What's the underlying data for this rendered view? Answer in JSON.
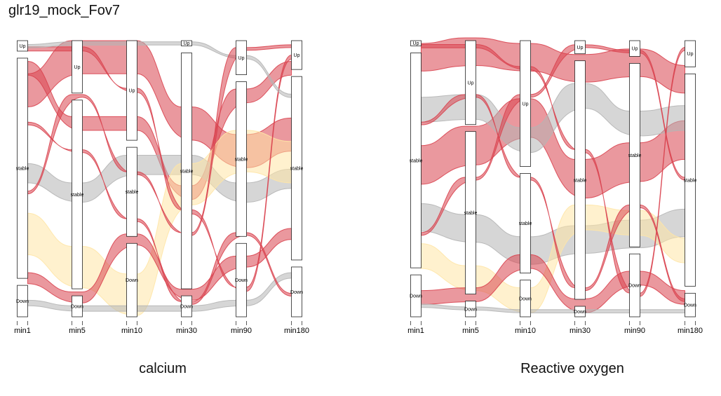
{
  "figure": {
    "title": "glr19_mock_Fov7"
  },
  "colors": {
    "up_flow": "#d9434f",
    "stable_flow": "#b5b5b5",
    "down_flow": "#ffe6a6",
    "stratum_fill": "#ffffff",
    "stratum_stroke": "#222222"
  },
  "chart_data": [
    {
      "type": "alluvial",
      "caption": "calcium",
      "axes": [
        "min1",
        "min5",
        "min10",
        "min30",
        "min90",
        "min180"
      ],
      "strata": [
        {
          "axis": "min1",
          "levels": [
            {
              "label": "Up",
              "share": 0.04
            },
            {
              "label": "stable",
              "share": 0.84
            },
            {
              "label": "Down",
              "share": 0.12
            }
          ]
        },
        {
          "axis": "min5",
          "levels": [
            {
              "label": "Up",
              "share": 0.2
            },
            {
              "label": "stable",
              "share": 0.72
            },
            {
              "label": "Down",
              "share": 0.08
            }
          ]
        },
        {
          "axis": "min10",
          "levels": [
            {
              "label": "Up",
              "share": 0.38
            },
            {
              "label": "stable",
              "share": 0.34
            },
            {
              "label": "Down",
              "share": 0.28
            }
          ]
        },
        {
          "axis": "min30",
          "levels": [
            {
              "label": "Up",
              "share": 0.02
            },
            {
              "label": "stable",
              "share": 0.9
            },
            {
              "label": "Down",
              "share": 0.08
            }
          ]
        },
        {
          "axis": "min90",
          "levels": [
            {
              "label": "Up",
              "share": 0.13
            },
            {
              "label": "stable",
              "share": 0.59
            },
            {
              "label": "Down",
              "share": 0.28
            }
          ]
        },
        {
          "axis": "min180",
          "levels": [
            {
              "label": "Up",
              "share": 0.11
            },
            {
              "label": "stable",
              "share": 0.7
            },
            {
              "label": "Down",
              "share": 0.19
            }
          ]
        }
      ],
      "flow_groups": [
        {
          "color": "up_flow",
          "path": [
            0.18,
            0.06,
            0.06,
            0.3,
            0.4,
            0.34
          ],
          "width": 0.12
        },
        {
          "color": "up_flow",
          "path": [
            0.1,
            0.3,
            0.3,
            0.55,
            0.2,
            0.1
          ],
          "width": 0.05
        },
        {
          "color": "stable_flow",
          "path": [
            0.48,
            0.55,
            0.45,
            0.45,
            0.55,
            0.5
          ],
          "width": 0.07
        },
        {
          "color": "down_flow",
          "path": [
            0.7,
            0.82,
            0.92,
            0.52,
            0.4,
            0.44
          ],
          "width": 0.15
        },
        {
          "color": "up_flow",
          "path": [
            0.86,
            0.93,
            0.72,
            0.92,
            0.8,
            0.7
          ],
          "width": 0.04
        },
        {
          "color": "stable_flow",
          "path": [
            0.95,
            0.97,
            0.97,
            0.97,
            0.95,
            0.85
          ],
          "width": 0.02
        },
        {
          "color": "up_flow",
          "path": [
            0.03,
            0.03,
            0.18,
            0.62,
            0.9,
            0.06
          ],
          "width": 0.015
        },
        {
          "color": "stable_flow",
          "path": [
            0.02,
            0.01,
            0.01,
            0.01,
            0.06,
            0.2
          ],
          "width": 0.012
        },
        {
          "color": "up_flow",
          "path": [
            0.3,
            0.4,
            0.65,
            0.95,
            0.7,
            0.92
          ],
          "width": 0.01
        },
        {
          "color": "up_flow",
          "path": [
            0.55,
            0.2,
            0.48,
            0.7,
            0.03,
            0.02
          ],
          "width": 0.01
        }
      ]
    },
    {
      "type": "alluvial",
      "caption": "Reactive oxygen",
      "axes": [
        "min1",
        "min5",
        "min10",
        "min30",
        "min90",
        "min180"
      ],
      "strata": [
        {
          "axis": "min1",
          "levels": [
            {
              "label": "Up",
              "share": 0.02
            },
            {
              "label": "stable",
              "share": 0.82
            },
            {
              "label": "Down",
              "share": 0.16
            }
          ]
        },
        {
          "axis": "min5",
          "levels": [
            {
              "label": "Up",
              "share": 0.32
            },
            {
              "label": "stable",
              "share": 0.62
            },
            {
              "label": "Down",
              "share": 0.06
            }
          ]
        },
        {
          "axis": "min10",
          "levels": [
            {
              "label": "Up",
              "share": 0.48
            },
            {
              "label": "stable",
              "share": 0.38
            },
            {
              "label": "Down",
              "share": 0.14
            }
          ]
        },
        {
          "axis": "min30",
          "levels": [
            {
              "label": "Up",
              "share": 0.05
            },
            {
              "label": "stable",
              "share": 0.91
            },
            {
              "label": "Down",
              "share": 0.04
            }
          ]
        },
        {
          "axis": "min90",
          "levels": [
            {
              "label": "Up",
              "share": 0.06
            },
            {
              "label": "stable",
              "share": 0.7
            },
            {
              "label": "Down",
              "share": 0.24
            }
          ]
        },
        {
          "axis": "min180",
          "levels": [
            {
              "label": "Up",
              "share": 0.1
            },
            {
              "label": "stable",
              "share": 0.81
            },
            {
              "label": "Down",
              "share": 0.09
            }
          ]
        }
      ],
      "flow_groups": [
        {
          "color": "up_flow",
          "path": [
            0.06,
            0.04,
            0.06,
            0.1,
            0.08,
            0.14
          ],
          "width": 0.1
        },
        {
          "color": "up_flow",
          "path": [
            0.45,
            0.38,
            0.28,
            0.5,
            0.44,
            0.36
          ],
          "width": 0.14
        },
        {
          "color": "stable_flow",
          "path": [
            0.25,
            0.24,
            0.36,
            0.2,
            0.3,
            0.28
          ],
          "width": 0.09
        },
        {
          "color": "stable_flow",
          "path": [
            0.64,
            0.68,
            0.76,
            0.72,
            0.7,
            0.66
          ],
          "width": 0.1
        },
        {
          "color": "down_flow",
          "path": [
            0.78,
            0.86,
            0.94,
            0.64,
            0.66,
            0.76
          ],
          "width": 0.09
        },
        {
          "color": "up_flow",
          "path": [
            0.93,
            0.92,
            0.8,
            0.96,
            0.86,
            0.93
          ],
          "width": 0.05
        },
        {
          "color": "up_flow",
          "path": [
            0.02,
            0.02,
            0.1,
            0.4,
            0.92,
            0.03
          ],
          "width": 0.012
        },
        {
          "color": "up_flow",
          "path": [
            0.3,
            0.2,
            0.5,
            0.9,
            0.6,
            0.94
          ],
          "width": 0.01
        },
        {
          "color": "up_flow",
          "path": [
            0.7,
            0.5,
            0.2,
            0.02,
            0.04,
            0.5
          ],
          "width": 0.01
        },
        {
          "color": "stable_flow",
          "path": [
            0.96,
            0.97,
            0.98,
            0.98,
            0.98,
            0.98
          ],
          "width": 0.012
        }
      ]
    }
  ]
}
